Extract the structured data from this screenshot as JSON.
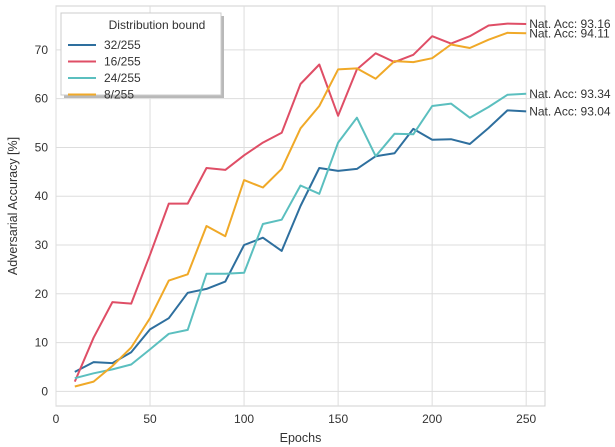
{
  "chart_data": {
    "type": "line",
    "xlabel": "Epochs",
    "ylabel": "Adversarial Accuracy [%]",
    "xlim": [
      0,
      260
    ],
    "ylim": [
      -3,
      79
    ],
    "xticks": [
      0,
      50,
      100,
      150,
      200,
      250
    ],
    "yticks": [
      0,
      10,
      20,
      30,
      40,
      50,
      60,
      70
    ],
    "grid": true,
    "legend": {
      "title": "Distribution bound",
      "placement": "top-left"
    },
    "x": [
      10,
      20,
      30,
      40,
      50,
      60,
      70,
      80,
      90,
      100,
      110,
      120,
      130,
      140,
      150,
      160,
      170,
      180,
      190,
      200,
      210,
      220,
      230,
      240,
      250
    ],
    "series": [
      {
        "name": "32/255",
        "color": "#2e6f9e",
        "values": [
          4,
          6,
          5.8,
          8,
          12.7,
          15,
          20.2,
          21,
          22.5,
          30,
          31.5,
          28.8,
          38,
          45.8,
          45.2,
          45.6,
          48.2,
          48.8,
          53.8,
          51.6,
          51.7,
          50.7,
          54,
          57.6,
          57.4
        ]
      },
      {
        "name": "16/255",
        "color": "#df4e66",
        "values": [
          2,
          11,
          18.3,
          18,
          28,
          38.5,
          38.5,
          45.8,
          45.4,
          48.4,
          51,
          53,
          63,
          67,
          56.5,
          66,
          69.3,
          67.5,
          69,
          72.8,
          71.3,
          72.8,
          75,
          75.4,
          75.3
        ]
      },
      {
        "name": "24/255",
        "color": "#5bbfbf",
        "values": [
          2.7,
          3.7,
          4.5,
          5.5,
          8.6,
          11.8,
          12.6,
          24.1,
          24.1,
          24.3,
          34.3,
          35.2,
          42.2,
          40.5,
          51,
          56.1,
          48.2,
          52.8,
          52.7,
          58.5,
          59,
          56.1,
          58.3,
          60.8,
          61
        ]
      },
      {
        "name": "8/255",
        "color": "#f0a928",
        "values": [
          1,
          2,
          5.2,
          9,
          15,
          22.7,
          24,
          33.9,
          31.8,
          43.3,
          41.8,
          45.6,
          53.9,
          58.5,
          66,
          66.2,
          64.1,
          67.7,
          67.5,
          68.3,
          71.1,
          70.4,
          72.1,
          73.5,
          73.4
        ]
      }
    ],
    "annotations": [
      {
        "text": "Nat. Acc: 93.16",
        "y": 75.3
      },
      {
        "text": "Nat. Acc: 94.11",
        "y": 73.4
      },
      {
        "text": "Nat. Acc: 93.34",
        "y": 61
      },
      {
        "text": "Nat. Acc: 93.04",
        "y": 57.4
      }
    ]
  }
}
